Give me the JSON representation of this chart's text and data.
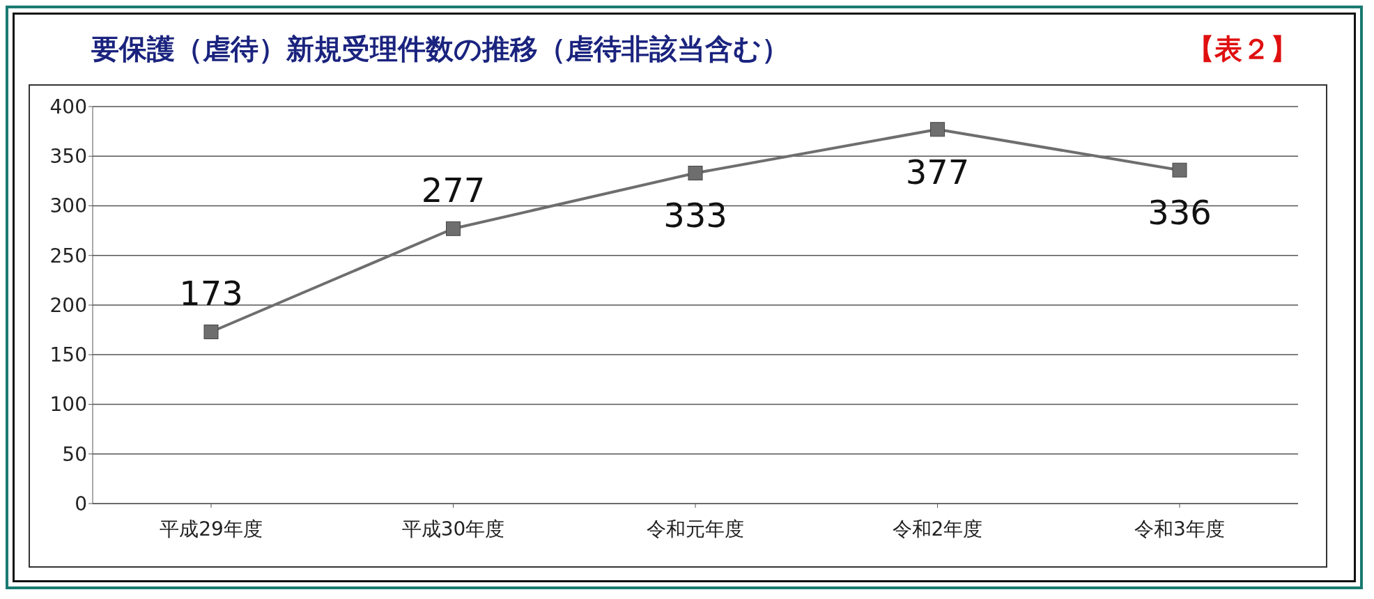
{
  "chart_data": {
    "type": "line",
    "title": "要保護（虐待）新規受理件数の推移（虐待非該当含む）",
    "annotations": [
      "【表２】"
    ],
    "categories": [
      "平成29年度",
      "平成30年度",
      "令和元年度",
      "令和2年度",
      "令和3年度"
    ],
    "series": [
      {
        "color": "#6e6e6e",
        "values": [
          173,
          277,
          333,
          377,
          336
        ]
      }
    ],
    "ylim": [
      0,
      400
    ],
    "yticks": [
      0,
      50,
      100,
      150,
      200,
      250,
      300,
      350,
      400
    ],
    "grid": "y",
    "marker": "square",
    "line_style": "solid",
    "data_labels": true,
    "legend": false
  }
}
